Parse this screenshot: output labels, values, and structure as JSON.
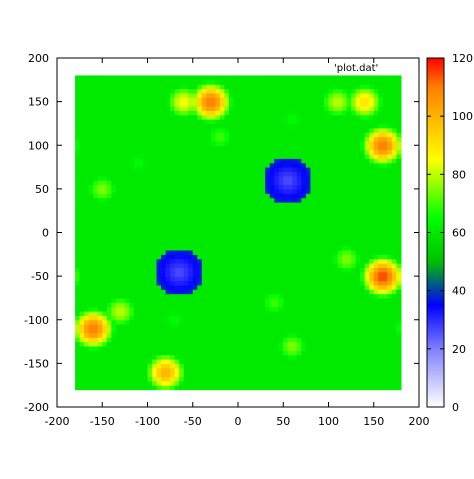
{
  "chart_data": {
    "type": "heatmap",
    "legend_label": "'plot.dat'",
    "legend_position": "top-right",
    "xlim": [
      -200,
      200
    ],
    "ylim": [
      -200,
      200
    ],
    "data_extent": [
      -180,
      180
    ],
    "x_ticks": [
      "-200",
      "-150",
      "-100",
      "-50",
      "0",
      "50",
      "100",
      "150",
      "200"
    ],
    "y_ticks": [
      "-200",
      "-150",
      "-100",
      "-50",
      "0",
      "50",
      "100",
      "150",
      "200"
    ],
    "colorbar": {
      "range": [
        0,
        120
      ],
      "ticks": [
        "0",
        "20",
        "40",
        "60",
        "80",
        "100",
        "120"
      ],
      "palette": [
        {
          "value": 0,
          "color": "#ffffff"
        },
        {
          "value": 20,
          "color": "#7f7fff"
        },
        {
          "value": 35,
          "color": "#0000ff"
        },
        {
          "value": 50,
          "color": "#00bf00"
        },
        {
          "value": 65,
          "color": "#00ff00"
        },
        {
          "value": 85,
          "color": "#ffff00"
        },
        {
          "value": 110,
          "color": "#ff7f00"
        },
        {
          "value": 120,
          "color": "#ff0000"
        }
      ]
    },
    "grid": false,
    "basins": [
      {
        "x": -150,
        "y": 50,
        "value": 75
      },
      {
        "x": -110,
        "y": 80,
        "value": 65
      },
      {
        "x": -160,
        "y": -110,
        "value": 110
      },
      {
        "x": -130,
        "y": -90,
        "value": 80
      },
      {
        "x": -70,
        "y": -100,
        "value": 65
      },
      {
        "x": -80,
        "y": -160,
        "value": 100
      },
      {
        "x": -30,
        "y": 150,
        "value": 110
      },
      {
        "x": -60,
        "y": 150,
        "value": 85
      },
      {
        "x": -20,
        "y": 110,
        "value": 70
      },
      {
        "x": 60,
        "y": 130,
        "value": 65
      },
      {
        "x": 160,
        "y": 100,
        "value": 110
      },
      {
        "x": 140,
        "y": 150,
        "value": 90
      },
      {
        "x": 110,
        "y": 150,
        "value": 80
      },
      {
        "x": 160,
        "y": -50,
        "value": 115
      },
      {
        "x": 120,
        "y": -30,
        "value": 75
      },
      {
        "x": 80,
        "y": 0,
        "value": 60
      },
      {
        "x": 40,
        "y": -80,
        "value": 70
      },
      {
        "x": 60,
        "y": -130,
        "value": 75
      }
    ],
    "holes": [
      {
        "x": -65,
        "y": -45,
        "value": 25
      },
      {
        "x": 55,
        "y": 60,
        "value": 25
      }
    ]
  }
}
